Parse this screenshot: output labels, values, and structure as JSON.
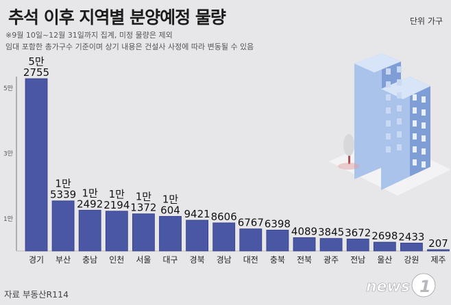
{
  "title": "추석 이후 지역별 분양예정 물량",
  "unit": "단위 가구",
  "notes": [
    "※9월 10일~12월 31일까지 집계, 미정 물량은 제외",
    "임대 포함한 총가구수 기준이며 상기 내용은 건설사 사정에 따라 변동될 수 있음"
  ],
  "source": "자료 부동산R114",
  "logo_text": "news1",
  "colors": {
    "bar": "#4a57a4",
    "bar_edge": "#333d82",
    "background": "#e7e7ea",
    "axis": "#777777"
  },
  "chart_data": {
    "type": "bar",
    "title": "추석 이후 지역별 분양예정 물량",
    "unit": "단위 가구",
    "categories": [
      "경기",
      "부산",
      "충남",
      "인천",
      "서울",
      "대구",
      "경북",
      "경남",
      "대전",
      "충북",
      "전북",
      "광주",
      "전남",
      "울산",
      "강원",
      "제주"
    ],
    "values": [
      52755,
      15339,
      12492,
      12194,
      11372,
      10604,
      9421,
      8606,
      6767,
      6398,
      4089,
      3845,
      3672,
      2698,
      2433,
      207
    ],
    "labels": [
      [
        "5만",
        "2755"
      ],
      [
        "1만",
        "5339"
      ],
      [
        "1만",
        "2492"
      ],
      [
        "1만",
        "2194"
      ],
      [
        "1만",
        "1372"
      ],
      [
        "1만",
        "604"
      ],
      [
        "9421"
      ],
      [
        "8606"
      ],
      [
        "6767"
      ],
      [
        "6398"
      ],
      [
        "4089"
      ],
      [
        "3845"
      ],
      [
        "3672"
      ],
      [
        "2698"
      ],
      [
        "2433"
      ],
      [
        "207"
      ]
    ],
    "y_ticks": [
      {
        "value": 10000,
        "label": "1만"
      },
      {
        "value": 30000,
        "label": "3만"
      },
      {
        "value": 50000,
        "label": "5만"
      }
    ]
  }
}
